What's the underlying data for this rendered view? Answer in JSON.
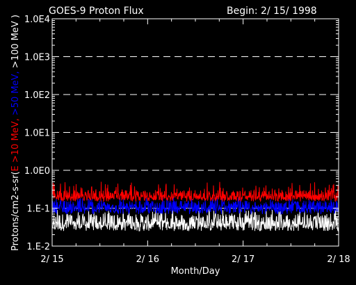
{
  "header": {
    "title": "GOES-9 Proton Flux",
    "begin": "Begin: 2/ 15/ 1998"
  },
  "chart_data": {
    "type": "line",
    "title": "GOES-9 Proton Flux",
    "xlabel": "Month/Day",
    "ylabel_parts": [
      {
        "text": "Protons/cm2-s-sr(",
        "color": "#ffffff"
      },
      {
        "text": "E >10 MeV, ",
        "color": "#ff0000"
      },
      {
        "text": ">50 MeV, ",
        "color": "#0000ff"
      },
      {
        "text": ">100 MeV )",
        "color": "#ffffff"
      }
    ],
    "yscale": "log",
    "ylim": [
      0.01,
      10000
    ],
    "yticks": [
      {
        "value": 10000,
        "label": "1.0E4"
      },
      {
        "value": 1000,
        "label": "1.0E3"
      },
      {
        "value": 100,
        "label": "1.0E2"
      },
      {
        "value": 10,
        "label": "1.0E1"
      },
      {
        "value": 1,
        "label": "1.0E0"
      },
      {
        "value": 0.1,
        "label": "1.E-1"
      },
      {
        "value": 0.01,
        "label": "1.E-2"
      }
    ],
    "xlim": [
      "1998-02-15",
      "1998-02-18"
    ],
    "xticks": [
      {
        "value": "1998-02-15",
        "label": "2/ 15"
      },
      {
        "value": "1998-02-16",
        "label": "2/ 16"
      },
      {
        "value": "1998-02-17",
        "label": "2/ 17"
      },
      {
        "value": "1998-02-18",
        "label": "2/ 18"
      }
    ],
    "grid": "dashed horizontal at decades",
    "series": [
      {
        "name": ">10 MeV",
        "color": "#ff0000",
        "typical": 0.22,
        "range": [
          0.15,
          0.5
        ]
      },
      {
        "name": ">50 MeV",
        "color": "#0000ff",
        "typical": 0.11,
        "range": [
          0.07,
          0.2
        ]
      },
      {
        "name": ">100 MeV",
        "color": "#ffffff",
        "typical": 0.045,
        "range": [
          0.025,
          0.1
        ]
      }
    ]
  }
}
